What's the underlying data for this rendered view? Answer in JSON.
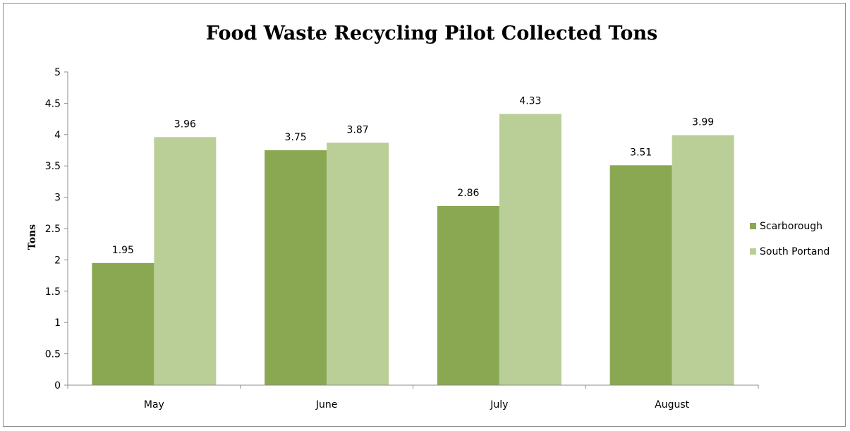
{
  "chart_data": {
    "type": "bar",
    "title": "Food Waste Recycling Pilot Collected Tons",
    "xlabel": "",
    "ylabel": "Tons",
    "categories": [
      "May",
      "June",
      "July",
      "August"
    ],
    "series": [
      {
        "name": "Scarborough",
        "values": [
          1.95,
          3.75,
          2.86,
          3.51
        ],
        "color": "#8aa752"
      },
      {
        "name": "South Portand",
        "values": [
          3.96,
          3.87,
          4.33,
          3.99
        ],
        "color": "#bacf97"
      }
    ],
    "ylim": [
      0,
      5
    ],
    "yticks": [
      "0",
      "0.5",
      "1",
      "1.5",
      "2",
      "2.5",
      "3",
      "3.5",
      "4",
      "4.5",
      "5"
    ],
    "grid": false,
    "legend_position": "right",
    "data_labels": true
  }
}
